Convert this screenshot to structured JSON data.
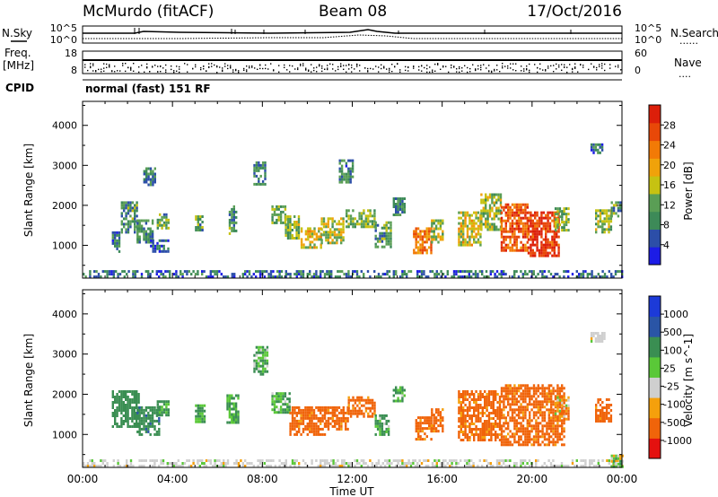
{
  "header": {
    "station": "McMurdo (fitACF)",
    "beam": "Beam 08",
    "date": "17/Oct/2016"
  },
  "strip_labels": {
    "nsky": "N.Sky",
    "nsearch": "N.Search",
    "freq": "Freq.",
    "freq_unit": "[MHz]",
    "nave": "Nave",
    "cpid": "CPID",
    "cpid_value": "normal (fast) 151 RF",
    "dots": "......",
    "dots_short": "...."
  },
  "strip_ticks": {
    "noise_top": "10^5",
    "noise_bottom": "10^0",
    "freq_top": "18",
    "freq_bottom": "8",
    "nave_top": "60",
    "nave_bottom": "0"
  },
  "colors": {
    "power": [
      "#1c1ce6",
      "#2c4ea8",
      "#3d8a58",
      "#5a9e55",
      "#c6c212",
      "#f0a20a",
      "#f27a06",
      "#e84808",
      "#dc1f0a"
    ],
    "velocity": [
      "#e4110f",
      "#f0640a",
      "#f5a00c",
      "#cfcfcf",
      "#5ac838",
      "#3a8e52",
      "#2a55a6",
      "#1c3ad8"
    ]
  },
  "chart_data": [
    {
      "type": "heatmap",
      "panel": "power",
      "xlabel": "",
      "ylabel": "Slant Range [km]",
      "xlim": [
        0,
        24
      ],
      "ylim": [
        180,
        4600
      ],
      "yticks": [
        1000,
        2000,
        3000,
        4000
      ],
      "grid": false,
      "colorbar": {
        "label": "Power [dB]",
        "ticks": [
          "4",
          "8",
          "12",
          "16",
          "20",
          "24",
          "28"
        ],
        "range": [
          0,
          32
        ]
      },
      "regions": [
        {
          "t": [
            0.0,
            24.0
          ],
          "r": [
            200,
            380
          ],
          "value": 7
        },
        {
          "t": [
            1.3,
            1.6
          ],
          "r": [
            850,
            1350
          ],
          "value": 8
        },
        {
          "t": [
            1.7,
            2.4
          ],
          "r": [
            1300,
            2100
          ],
          "value": 10
        },
        {
          "t": [
            2.4,
            3.1
          ],
          "r": [
            1050,
            1650
          ],
          "value": 9
        },
        {
          "t": [
            2.7,
            3.2
          ],
          "r": [
            2500,
            2950
          ],
          "value": 8
        },
        {
          "t": [
            3.0,
            3.8
          ],
          "r": [
            850,
            1150
          ],
          "value": 6
        },
        {
          "t": [
            3.3,
            3.8
          ],
          "r": [
            1450,
            1800
          ],
          "value": 12
        },
        {
          "t": [
            5.0,
            5.3
          ],
          "r": [
            1350,
            1750
          ],
          "value": 11
        },
        {
          "t": [
            6.5,
            6.8
          ],
          "r": [
            1300,
            2000
          ],
          "value": 11
        },
        {
          "t": [
            7.6,
            8.1
          ],
          "r": [
            2500,
            3100
          ],
          "value": 9
        },
        {
          "t": [
            8.4,
            9.0
          ],
          "r": [
            1550,
            2000
          ],
          "value": 12
        },
        {
          "t": [
            9.0,
            9.6
          ],
          "r": [
            1150,
            1750
          ],
          "value": 13
        },
        {
          "t": [
            9.7,
            10.6
          ],
          "r": [
            950,
            1450
          ],
          "value": 17
        },
        {
          "t": [
            10.6,
            11.6
          ],
          "r": [
            1050,
            1700
          ],
          "value": 15
        },
        {
          "t": [
            11.4,
            12.0
          ],
          "r": [
            2600,
            3150
          ],
          "value": 8
        },
        {
          "t": [
            11.7,
            13.0
          ],
          "r": [
            1450,
            1900
          ],
          "value": 13
        },
        {
          "t": [
            13.0,
            13.7
          ],
          "r": [
            950,
            1600
          ],
          "value": 10
        },
        {
          "t": [
            13.8,
            14.3
          ],
          "r": [
            1750,
            2200
          ],
          "value": 9
        },
        {
          "t": [
            14.7,
            15.5
          ],
          "r": [
            800,
            1450
          ],
          "value": 23
        },
        {
          "t": [
            15.5,
            16.0
          ],
          "r": [
            1050,
            1650
          ],
          "value": 15
        },
        {
          "t": [
            16.7,
            17.7
          ],
          "r": [
            1000,
            1850
          ],
          "value": 17
        },
        {
          "t": [
            17.7,
            18.6
          ],
          "r": [
            1400,
            2300
          ],
          "value": 14
        },
        {
          "t": [
            18.6,
            19.8
          ],
          "r": [
            850,
            2050
          ],
          "value": 26
        },
        {
          "t": [
            19.8,
            21.2
          ],
          "r": [
            750,
            1850
          ],
          "value": 29
        },
        {
          "t": [
            21.0,
            21.6
          ],
          "r": [
            1400,
            1950
          ],
          "value": 13
        },
        {
          "t": [
            22.6,
            23.1
          ],
          "r": [
            3300,
            3550
          ],
          "value": 7
        },
        {
          "t": [
            22.8,
            23.5
          ],
          "r": [
            1300,
            1900
          ],
          "value": 14
        },
        {
          "t": [
            23.5,
            23.9
          ],
          "r": [
            1700,
            2100
          ],
          "value": 11
        }
      ]
    },
    {
      "type": "heatmap",
      "panel": "velocity",
      "xlabel": "Time UT",
      "ylabel": "Slant Range [km]",
      "xlim": [
        0,
        24
      ],
      "ylim": [
        180,
        4600
      ],
      "yticks": [
        1000,
        2000,
        3000,
        4000
      ],
      "xticks": [
        "00:00",
        "04:00",
        "08:00",
        "12:00",
        "16:00",
        "20:00",
        "00:00"
      ],
      "grid": false,
      "colorbar": {
        "label": "Velocity [m s^-1]",
        "ticks": [
          "1000",
          "500",
          "100",
          "25",
          "-25",
          "-100",
          "-500",
          "-1000"
        ],
        "range": [
          -1000,
          1000
        ]
      },
      "regions": [
        {
          "t": [
            0.0,
            24.0
          ],
          "r": [
            200,
            380
          ],
          "value": 0
        },
        {
          "t": [
            1.3,
            2.5
          ],
          "r": [
            1200,
            2100
          ],
          "value": 300
        },
        {
          "t": [
            2.4,
            3.4
          ],
          "r": [
            1000,
            1700
          ],
          "value": 400
        },
        {
          "t": [
            3.3,
            3.8
          ],
          "r": [
            1500,
            1850
          ],
          "value": 150
        },
        {
          "t": [
            5.0,
            5.4
          ],
          "r": [
            1300,
            1750
          ],
          "value": 150
        },
        {
          "t": [
            6.4,
            6.9
          ],
          "r": [
            1300,
            2000
          ],
          "value": 150
        },
        {
          "t": [
            7.6,
            8.2
          ],
          "r": [
            2500,
            3200
          ],
          "value": 120
        },
        {
          "t": [
            8.4,
            9.2
          ],
          "r": [
            1550,
            2050
          ],
          "value": 120
        },
        {
          "t": [
            9.2,
            10.8
          ],
          "r": [
            1000,
            1700
          ],
          "value": -200
        },
        {
          "t": [
            10.8,
            11.8
          ],
          "r": [
            1100,
            1700
          ],
          "value": -200
        },
        {
          "t": [
            11.8,
            13.0
          ],
          "r": [
            1450,
            1950
          ],
          "value": -200
        },
        {
          "t": [
            13.0,
            13.6
          ],
          "r": [
            1000,
            1500
          ],
          "value": 130
        },
        {
          "t": [
            13.8,
            14.3
          ],
          "r": [
            1800,
            2200
          ],
          "value": 130
        },
        {
          "t": [
            14.8,
            15.5
          ],
          "r": [
            850,
            1450
          ],
          "value": -200
        },
        {
          "t": [
            15.5,
            16.0
          ],
          "r": [
            1050,
            1650
          ],
          "value": -200
        },
        {
          "t": [
            16.7,
            18.6
          ],
          "r": [
            850,
            2100
          ],
          "value": -200
        },
        {
          "t": [
            18.6,
            21.4
          ],
          "r": [
            750,
            2250
          ],
          "value": -200
        },
        {
          "t": [
            21.0,
            21.6
          ],
          "r": [
            1400,
            1950
          ],
          "value": -80
        },
        {
          "t": [
            22.6,
            23.2
          ],
          "r": [
            3300,
            3550
          ],
          "value": 0
        },
        {
          "t": [
            22.8,
            23.5
          ],
          "r": [
            1300,
            1900
          ],
          "value": -200
        },
        {
          "t": [
            23.5,
            24.0
          ],
          "r": [
            200,
            500
          ],
          "value": 60
        }
      ]
    }
  ]
}
